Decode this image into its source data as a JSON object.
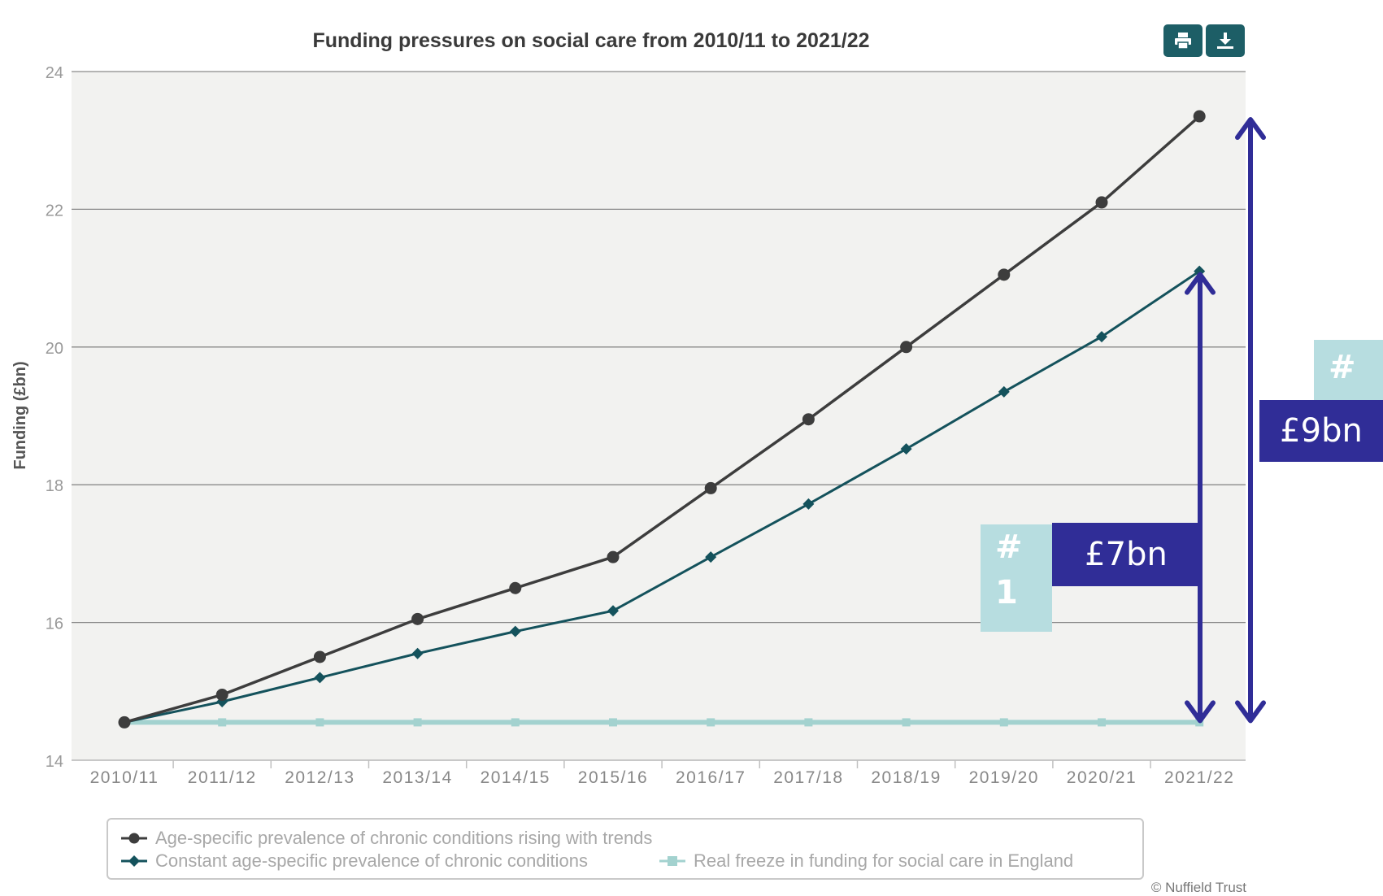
{
  "toolbar": {
    "print_icon": "printer-icon",
    "download_icon": "download-icon"
  },
  "annotations": {
    "inner": {
      "badge": "#\n1",
      "label": "£7bn"
    },
    "outer": {
      "badge": "#",
      "label": "£9bn"
    }
  },
  "credit": "© Nuffield Trust",
  "colors": {
    "series_a": "#3d3d3d",
    "series_b": "#14525c",
    "series_c": "#a3d2cf",
    "arrow": "#302d97",
    "badge_light": "#b7dde0",
    "badge_dark": "#302d97",
    "plot_bg": "#f2f2f0"
  },
  "chart_data": {
    "type": "line",
    "title": "Funding pressures on social care from 2010/11 to 2021/22",
    "xlabel": "",
    "ylabel": "Funding (£bn)",
    "ylim": [
      14,
      24
    ],
    "yticks": [
      14,
      16,
      18,
      20,
      22,
      24
    ],
    "grid": true,
    "legend_position": "bottom",
    "categories": [
      "2010/11",
      "2011/12",
      "2012/13",
      "2013/14",
      "2014/15",
      "2015/16",
      "2016/17",
      "2017/18",
      "2018/19",
      "2019/20",
      "2020/21",
      "2021/22"
    ],
    "series": [
      {
        "name": "Age-specific prevalence of chronic conditions rising with trends",
        "marker": "circle",
        "values": [
          14.55,
          14.95,
          15.5,
          16.05,
          16.5,
          16.95,
          17.95,
          18.95,
          20.0,
          21.05,
          22.1,
          23.35
        ]
      },
      {
        "name": "Constant age-specific prevalence of chronic conditions",
        "marker": "diamond",
        "values": [
          14.55,
          14.85,
          15.2,
          15.55,
          15.87,
          16.17,
          16.95,
          17.72,
          18.52,
          19.35,
          20.15,
          21.1
        ]
      },
      {
        "name": "Real freeze in funding for social care in England",
        "marker": "square",
        "values": [
          14.55,
          14.55,
          14.55,
          14.55,
          14.55,
          14.55,
          14.55,
          14.55,
          14.55,
          14.55,
          14.55,
          14.55
        ]
      }
    ]
  }
}
